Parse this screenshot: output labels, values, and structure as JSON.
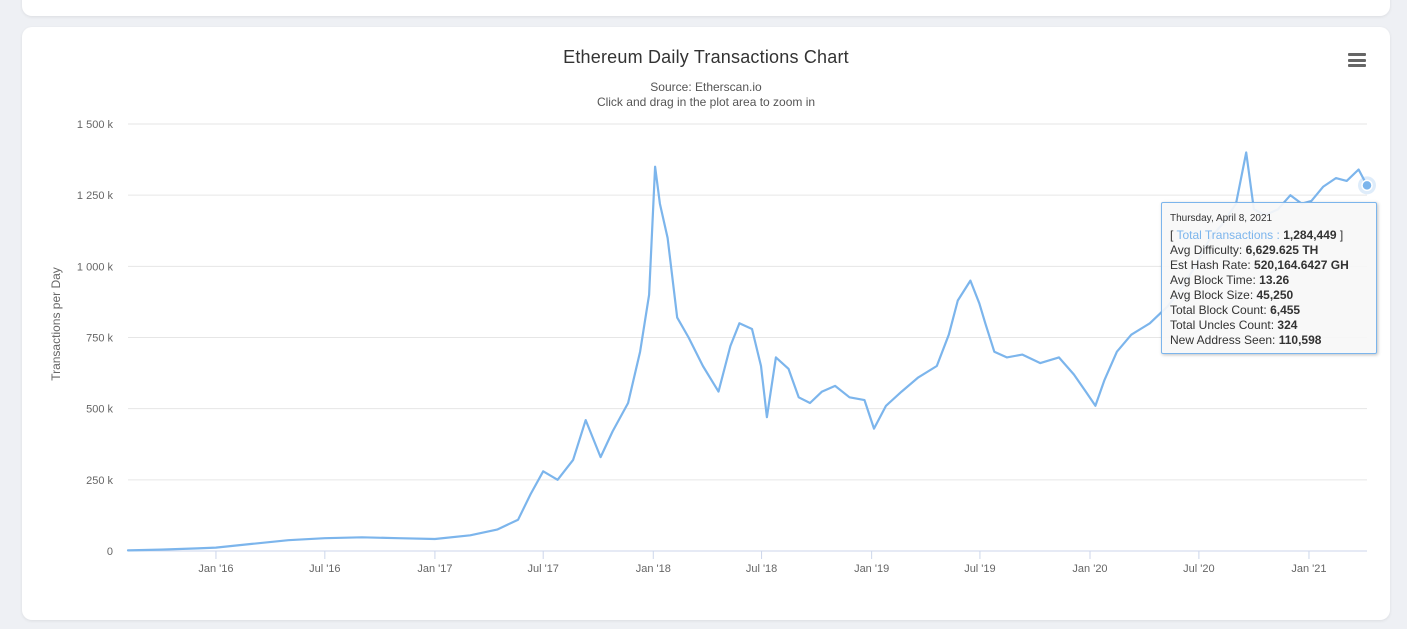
{
  "chart_data": {
    "type": "line",
    "title": "Ethereum Daily Transactions Chart",
    "subtitle": "Source: Etherscan.io",
    "subtitle2": "Click and drag in the plot area to zoom in",
    "ylabel": "Transactions per Day",
    "xlabel": "",
    "ylim": [
      0,
      1500000
    ],
    "xlim": [
      "2015-08-07",
      "2021-04-08"
    ],
    "y_ticks": [
      {
        "value": 0,
        "label": "0"
      },
      {
        "value": 250000,
        "label": "250 k"
      },
      {
        "value": 500000,
        "label": "500 k"
      },
      {
        "value": 750000,
        "label": "750 k"
      },
      {
        "value": 1000000,
        "label": "1 000 k"
      },
      {
        "value": 1250000,
        "label": "1 250 k"
      },
      {
        "value": 1500000,
        "label": "1 500 k"
      }
    ],
    "x_ticks": [
      {
        "value": "2016-01-01",
        "label": "Jan '16"
      },
      {
        "value": "2016-07-01",
        "label": "Jul '16"
      },
      {
        "value": "2017-01-01",
        "label": "Jan '17"
      },
      {
        "value": "2017-07-01",
        "label": "Jul '17"
      },
      {
        "value": "2018-01-01",
        "label": "Jan '18"
      },
      {
        "value": "2018-07-01",
        "label": "Jul '18"
      },
      {
        "value": "2019-01-01",
        "label": "Jan '19"
      },
      {
        "value": "2019-07-01",
        "label": "Jul '19"
      },
      {
        "value": "2020-01-01",
        "label": "Jan '20"
      },
      {
        "value": "2020-07-01",
        "label": "Jul '20"
      },
      {
        "value": "2021-01-01",
        "label": "Jan '21"
      }
    ],
    "grid": true,
    "legend": "none",
    "series": [
      {
        "name": "Total Transactions",
        "color": "#7cb5ec",
        "points": [
          [
            "2015-08-07",
            2000
          ],
          [
            "2015-10-01",
            5000
          ],
          [
            "2015-12-01",
            9000
          ],
          [
            "2016-01-01",
            12000
          ],
          [
            "2016-03-01",
            25000
          ],
          [
            "2016-05-01",
            38000
          ],
          [
            "2016-07-01",
            45000
          ],
          [
            "2016-09-01",
            48000
          ],
          [
            "2016-11-01",
            45000
          ],
          [
            "2017-01-01",
            42000
          ],
          [
            "2017-03-01",
            55000
          ],
          [
            "2017-04-15",
            75000
          ],
          [
            "2017-05-20",
            110000
          ],
          [
            "2017-06-10",
            200000
          ],
          [
            "2017-07-01",
            280000
          ],
          [
            "2017-07-25",
            250000
          ],
          [
            "2017-08-20",
            320000
          ],
          [
            "2017-09-10",
            460000
          ],
          [
            "2017-10-05",
            330000
          ],
          [
            "2017-10-25",
            420000
          ],
          [
            "2017-11-20",
            520000
          ],
          [
            "2017-12-10",
            700000
          ],
          [
            "2017-12-25",
            900000
          ],
          [
            "2018-01-04",
            1350000
          ],
          [
            "2018-01-12",
            1220000
          ],
          [
            "2018-01-25",
            1100000
          ],
          [
            "2018-02-10",
            820000
          ],
          [
            "2018-03-01",
            750000
          ],
          [
            "2018-03-25",
            650000
          ],
          [
            "2018-04-20",
            560000
          ],
          [
            "2018-05-10",
            720000
          ],
          [
            "2018-05-25",
            800000
          ],
          [
            "2018-06-15",
            780000
          ],
          [
            "2018-06-30",
            650000
          ],
          [
            "2018-07-10",
            470000
          ],
          [
            "2018-07-25",
            680000
          ],
          [
            "2018-08-15",
            640000
          ],
          [
            "2018-09-01",
            540000
          ],
          [
            "2018-09-20",
            520000
          ],
          [
            "2018-10-10",
            560000
          ],
          [
            "2018-11-01",
            580000
          ],
          [
            "2018-11-25",
            540000
          ],
          [
            "2018-12-20",
            530000
          ],
          [
            "2019-01-05",
            430000
          ],
          [
            "2019-01-25",
            510000
          ],
          [
            "2019-02-20",
            560000
          ],
          [
            "2019-03-20",
            610000
          ],
          [
            "2019-04-20",
            650000
          ],
          [
            "2019-05-10",
            760000
          ],
          [
            "2019-05-25",
            880000
          ],
          [
            "2019-06-15",
            950000
          ],
          [
            "2019-06-30",
            870000
          ],
          [
            "2019-07-10",
            800000
          ],
          [
            "2019-07-25",
            700000
          ],
          [
            "2019-08-15",
            680000
          ],
          [
            "2019-09-10",
            690000
          ],
          [
            "2019-10-10",
            660000
          ],
          [
            "2019-11-10",
            680000
          ],
          [
            "2019-12-05",
            620000
          ],
          [
            "2019-12-25",
            560000
          ],
          [
            "2020-01-10",
            510000
          ],
          [
            "2020-01-25",
            600000
          ],
          [
            "2020-02-15",
            700000
          ],
          [
            "2020-03-10",
            760000
          ],
          [
            "2020-04-10",
            800000
          ],
          [
            "2020-05-10",
            860000
          ],
          [
            "2020-06-01",
            920000
          ],
          [
            "2020-06-25",
            1000000
          ],
          [
            "2020-07-20",
            1100000
          ],
          [
            "2020-08-10",
            1150000
          ],
          [
            "2020-09-01",
            1220000
          ],
          [
            "2020-09-18",
            1400000
          ],
          [
            "2020-10-01",
            1200000
          ],
          [
            "2020-10-20",
            1180000
          ],
          [
            "2020-11-10",
            1200000
          ],
          [
            "2020-12-01",
            1250000
          ],
          [
            "2020-12-20",
            1220000
          ],
          [
            "2021-01-05",
            1230000
          ],
          [
            "2021-01-25",
            1280000
          ],
          [
            "2021-02-15",
            1310000
          ],
          [
            "2021-03-05",
            1300000
          ],
          [
            "2021-03-25",
            1340000
          ],
          [
            "2021-04-08",
            1284449
          ]
        ]
      }
    ]
  },
  "tooltip": {
    "date": "Thursday, April 8, 2021",
    "series_prefix": "[ ",
    "series_name": "Total Transactions :",
    "series_value": "1,284,449",
    "series_suffix": " ]",
    "rows": [
      {
        "label": "Avg Difficulty: ",
        "value": "6,629.625 TH"
      },
      {
        "label": "Est Hash Rate: ",
        "value": "520,164.6427 GH"
      },
      {
        "label": "Avg Block Time: ",
        "value": "13.26"
      },
      {
        "label": "Avg Block Size: ",
        "value": "45,250"
      },
      {
        "label": "Total Block Count: ",
        "value": "6,455"
      },
      {
        "label": "Total Uncles Count: ",
        "value": "324"
      },
      {
        "label": "New Address Seen: ",
        "value": "110,598"
      }
    ]
  },
  "menu_icon": "hamburger-menu-icon"
}
